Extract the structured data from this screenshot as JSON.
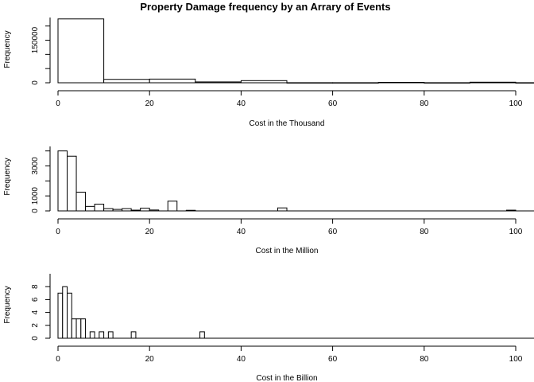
{
  "title": "Property Damage frequency by an Arrary of Events",
  "chart_data": [
    {
      "type": "bar",
      "subtype": "histogram",
      "xlabel": "Cost in the Thousand",
      "ylabel": "Frequency",
      "xlim": [
        0,
        100
      ],
      "xticks": [
        0,
        20,
        40,
        60,
        80,
        100
      ],
      "yticks": [
        0,
        50000,
        100000,
        150000,
        200000
      ],
      "ytick_labels": [
        "0",
        "",
        "",
        "150000",
        ""
      ],
      "ylim": [
        0,
        230000
      ],
      "bin_width": 10,
      "bins": [
        {
          "x0": 0,
          "x1": 10,
          "count": 225000
        },
        {
          "x0": 10,
          "x1": 20,
          "count": 12000
        },
        {
          "x0": 20,
          "x1": 30,
          "count": 13000
        },
        {
          "x0": 30,
          "x1": 40,
          "count": 3000
        },
        {
          "x0": 40,
          "x1": 50,
          "count": 7500
        },
        {
          "x0": 50,
          "x1": 60,
          "count": 300
        },
        {
          "x0": 60,
          "x1": 70,
          "count": 300
        },
        {
          "x0": 70,
          "x1": 80,
          "count": 1500
        },
        {
          "x0": 80,
          "x1": 90,
          "count": 300
        },
        {
          "x0": 90,
          "x1": 100,
          "count": 2000
        },
        {
          "x0": 100,
          "x1": 110,
          "count": 300
        }
      ]
    },
    {
      "type": "bar",
      "subtype": "histogram",
      "xlabel": "Cost in the Million",
      "ylabel": "Frequency",
      "xlim": [
        0,
        100
      ],
      "xticks": [
        0,
        20,
        40,
        60,
        80,
        100
      ],
      "yticks": [
        0,
        1000,
        2000,
        3000,
        4000
      ],
      "ytick_labels": [
        "0",
        "1000",
        "",
        "3000",
        ""
      ],
      "ylim": [
        0,
        4300
      ],
      "bin_width": 2,
      "bins": [
        {
          "x0": 0,
          "x1": 2,
          "count": 4000
        },
        {
          "x0": 2,
          "x1": 4,
          "count": 3650
        },
        {
          "x0": 4,
          "x1": 6,
          "count": 1250
        },
        {
          "x0": 6,
          "x1": 8,
          "count": 300
        },
        {
          "x0": 8,
          "x1": 10,
          "count": 450
        },
        {
          "x0": 10,
          "x1": 12,
          "count": 150
        },
        {
          "x0": 12,
          "x1": 14,
          "count": 100
        },
        {
          "x0": 14,
          "x1": 16,
          "count": 150
        },
        {
          "x0": 16,
          "x1": 18,
          "count": 50
        },
        {
          "x0": 18,
          "x1": 20,
          "count": 180
        },
        {
          "x0": 20,
          "x1": 22,
          "count": 60
        },
        {
          "x0": 24,
          "x1": 26,
          "count": 650
        },
        {
          "x0": 28,
          "x1": 30,
          "count": 40
        },
        {
          "x0": 48,
          "x1": 50,
          "count": 200
        },
        {
          "x0": 98,
          "x1": 100,
          "count": 50
        }
      ]
    },
    {
      "type": "bar",
      "subtype": "histogram",
      "xlabel": "Cost in the Billion",
      "ylabel": "Frequency",
      "xlim": [
        0,
        100
      ],
      "xticks": [
        0,
        20,
        40,
        60,
        80,
        100
      ],
      "yticks": [
        0,
        2,
        4,
        6,
        8
      ],
      "ytick_labels": [
        "0",
        "2",
        "4",
        "6",
        "8"
      ],
      "ylim": [
        0,
        10
      ],
      "bin_width": 1,
      "bins": [
        {
          "x0": 0,
          "x1": 1,
          "count": 7
        },
        {
          "x0": 1,
          "x1": 2,
          "count": 8
        },
        {
          "x0": 2,
          "x1": 3,
          "count": 7
        },
        {
          "x0": 3,
          "x1": 4,
          "count": 3
        },
        {
          "x0": 4,
          "x1": 5,
          "count": 3
        },
        {
          "x0": 5,
          "x1": 6,
          "count": 3
        },
        {
          "x0": 7,
          "x1": 8,
          "count": 1
        },
        {
          "x0": 9,
          "x1": 10,
          "count": 1
        },
        {
          "x0": 11,
          "x1": 12,
          "count": 1
        },
        {
          "x0": 16,
          "x1": 17,
          "count": 1
        },
        {
          "x0": 31,
          "x1": 32,
          "count": 1
        }
      ]
    }
  ]
}
